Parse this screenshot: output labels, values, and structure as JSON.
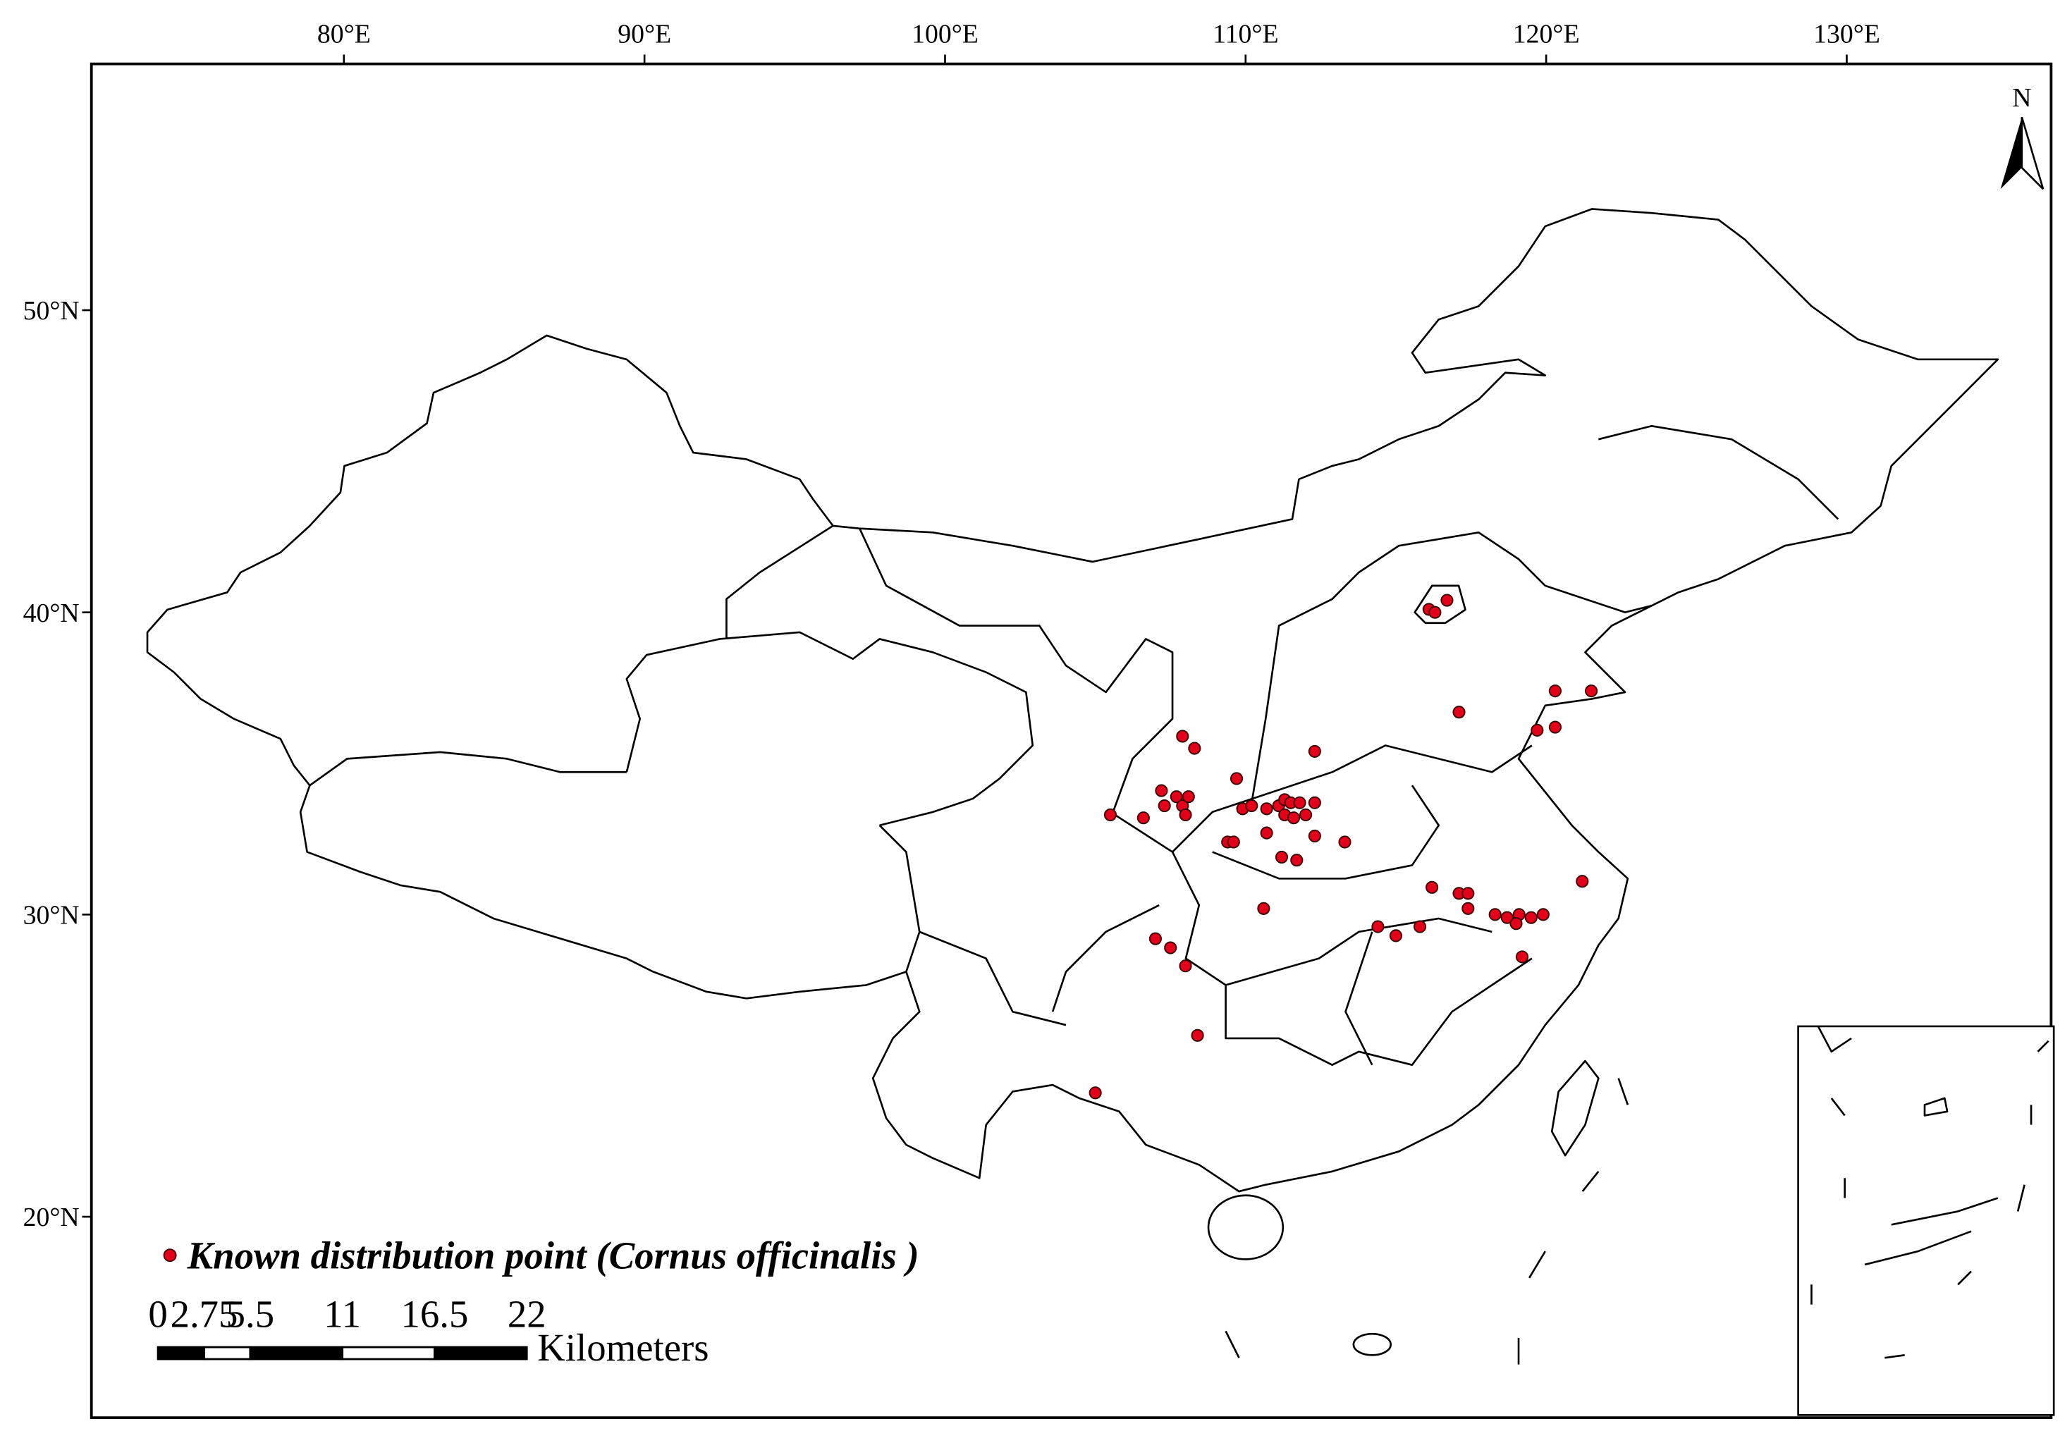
{
  "map": {
    "type": "point-map",
    "xlim": [
      71.6,
      136.8
    ],
    "ylim": [
      13.35,
      58.15
    ],
    "xticks": [
      {
        "value": 80,
        "label": "80°E"
      },
      {
        "value": 90,
        "label": "90°E"
      },
      {
        "value": 100,
        "label": "100°E"
      },
      {
        "value": 110,
        "label": "110°E"
      },
      {
        "value": 120,
        "label": "120°E"
      },
      {
        "value": 130,
        "label": "130°E"
      }
    ],
    "yticks": [
      {
        "value": 20,
        "label": "20°N"
      },
      {
        "value": 30,
        "label": "30°N"
      },
      {
        "value": 40,
        "label": "40°N"
      },
      {
        "value": 50,
        "label": "50°N"
      }
    ],
    "north": "N",
    "legend": "Known distribution point (Cornus officinalis )",
    "point_color": "#e3001b",
    "lon": [
      116.1,
      116.3,
      116.7,
      117.1,
      120.3,
      121.5,
      119.7,
      120.3,
      107.9,
      108.3,
      112.3,
      105.5,
      106.6,
      107.2,
      107.3,
      107.7,
      107.9,
      108.1,
      108.0,
      109.7,
      109.9,
      110.2,
      110.7,
      111.1,
      111.3,
      111.5,
      111.8,
      112.3,
      111.3,
      111.6,
      112.0,
      109.4,
      109.6,
      110.7,
      112.3,
      113.3,
      111.2,
      111.7,
      116.2,
      117.1,
      117.4,
      117.4,
      118.3,
      118.7,
      119.1,
      119.0,
      119.5,
      119.9,
      110.6,
      114.4,
      115.0,
      115.8,
      107.0,
      107.5,
      108.0,
      108.4,
      105.0,
      121.2,
      119.2
    ],
    "lat": [
      40.1,
      40.0,
      40.4,
      36.7,
      37.4,
      37.4,
      36.1,
      36.2,
      35.9,
      35.5,
      35.4,
      33.3,
      33.2,
      34.1,
      33.6,
      33.9,
      33.6,
      33.9,
      33.3,
      34.5,
      33.5,
      33.6,
      33.5,
      33.6,
      33.8,
      33.7,
      33.7,
      33.7,
      33.3,
      33.2,
      33.3,
      32.4,
      32.4,
      32.7,
      32.6,
      32.4,
      31.9,
      31.8,
      30.9,
      30.7,
      30.7,
      30.2,
      30.0,
      29.9,
      30.0,
      29.7,
      29.9,
      30.0,
      30.2,
      29.6,
      29.3,
      29.6,
      29.2,
      28.9,
      28.3,
      26.0,
      24.1,
      31.1,
      28.6
    ],
    "scale": {
      "ticks": [
        0,
        2.75,
        5.5,
        11,
        16.5,
        22
      ],
      "unit": "Kilometers"
    }
  }
}
